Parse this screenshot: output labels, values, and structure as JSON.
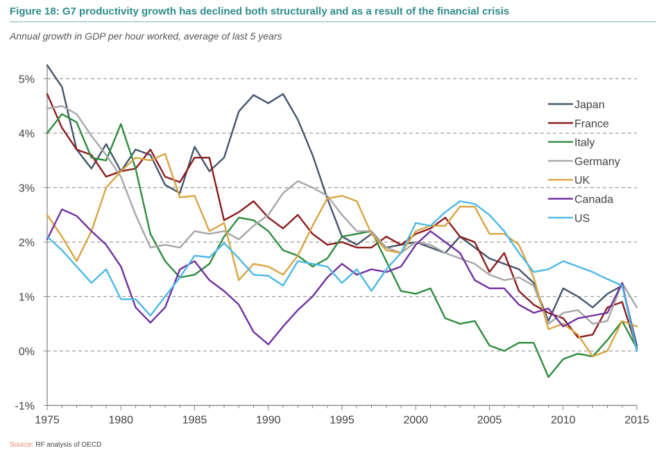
{
  "header": {
    "title": "Figure 18: G7 productivity growth has declined both structurally and as a result of the financial crisis",
    "subtitle": "Annual growth in GDP per hour worked, average of last 5 years"
  },
  "footer": {
    "source_label": "Source:",
    "source_text": "RF analysis of OECD"
  },
  "chart_data": {
    "type": "line",
    "title": "Figure 18: G7 productivity growth has declined both structurally and as a result of the financial crisis",
    "subtitle": "Annual growth in GDP per hour worked, average of last 5 years",
    "xlabel": "",
    "ylabel": "",
    "xlim": [
      1975,
      2015
    ],
    "ylim": [
      -1,
      5.5
    ],
    "x_ticks": [
      "1975",
      "1980",
      "1985",
      "1990",
      "1995",
      "2000",
      "2005",
      "2010",
      "2015"
    ],
    "y_ticks": [
      {
        "value": -1,
        "label": "-1%"
      },
      {
        "value": 0,
        "label": "0%"
      },
      {
        "value": 1,
        "label": "1%"
      },
      {
        "value": 2,
        "label": "2%"
      },
      {
        "value": 3,
        "label": "3%"
      },
      {
        "value": 4,
        "label": "4%"
      },
      {
        "value": 5,
        "label": "5%"
      }
    ],
    "grid": "horizontal dashed",
    "legend_position": "top-right",
    "x": [
      1975,
      1976,
      1977,
      1978,
      1979,
      1980,
      1981,
      1982,
      1983,
      1984,
      1985,
      1986,
      1987,
      1988,
      1989,
      1990,
      1991,
      1992,
      1993,
      1994,
      1995,
      1996,
      1997,
      1998,
      1999,
      2000,
      2001,
      2002,
      2003,
      2004,
      2005,
      2006,
      2007,
      2008,
      2009,
      2010,
      2011,
      2012,
      2013,
      2014,
      2015
    ],
    "series": [
      {
        "name": "Japan",
        "color": "#44546a",
        "values": [
          5.25,
          4.85,
          3.7,
          3.35,
          3.8,
          3.3,
          3.7,
          3.6,
          3.05,
          2.9,
          3.75,
          3.3,
          3.55,
          4.4,
          4.7,
          4.55,
          4.72,
          4.25,
          3.6,
          2.8,
          2.1,
          1.95,
          2.15,
          1.9,
          1.95,
          2.0,
          1.9,
          1.8,
          2.1,
          1.9,
          1.7,
          1.6,
          1.5,
          1.25,
          0.55,
          1.15,
          1.0,
          0.8,
          1.05,
          1.2,
          0.1
        ]
      },
      {
        "name": "France",
        "color": "#8b1a1a",
        "values": [
          4.72,
          4.1,
          3.7,
          3.6,
          3.2,
          3.3,
          3.35,
          3.7,
          3.2,
          3.1,
          3.55,
          3.55,
          2.4,
          2.55,
          2.75,
          2.45,
          2.25,
          2.5,
          2.15,
          1.95,
          2.0,
          1.9,
          1.9,
          2.1,
          1.95,
          2.15,
          2.25,
          2.45,
          2.1,
          2.0,
          1.45,
          1.8,
          1.1,
          0.85,
          0.7,
          0.6,
          0.25,
          0.3,
          0.8,
          0.9,
          0.05
        ]
      },
      {
        "name": "Italy",
        "color": "#2e8b3e",
        "values": [
          4.0,
          4.35,
          4.2,
          3.55,
          3.5,
          4.17,
          3.35,
          2.15,
          1.65,
          1.35,
          1.4,
          1.6,
          2.1,
          2.45,
          2.4,
          2.2,
          1.85,
          1.75,
          1.55,
          1.7,
          2.1,
          2.15,
          2.2,
          1.65,
          1.1,
          1.05,
          1.15,
          0.6,
          0.5,
          0.55,
          0.1,
          0.0,
          0.15,
          0.15,
          -0.48,
          -0.15,
          -0.05,
          -0.1,
          0.2,
          0.55,
          0.05
        ]
      },
      {
        "name": "Germany",
        "color": "#a6a6a6",
        "values": [
          4.45,
          4.5,
          4.35,
          3.95,
          3.6,
          3.2,
          2.5,
          1.9,
          1.95,
          1.9,
          2.2,
          2.15,
          2.2,
          2.05,
          2.3,
          2.5,
          2.9,
          3.12,
          3.0,
          2.85,
          2.5,
          2.2,
          2.2,
          1.9,
          1.8,
          2.0,
          1.95,
          1.8,
          1.7,
          1.6,
          1.4,
          1.3,
          1.35,
          1.2,
          0.5,
          0.7,
          0.75,
          0.5,
          0.55,
          1.25,
          0.8
        ]
      },
      {
        "name": "UK",
        "color": "#d9a441",
        "values": [
          2.5,
          2.1,
          1.65,
          2.2,
          3.0,
          3.3,
          3.55,
          3.5,
          3.62,
          2.82,
          2.85,
          2.2,
          2.35,
          1.3,
          1.6,
          1.55,
          1.4,
          1.75,
          2.3,
          2.8,
          2.85,
          2.75,
          2.15,
          1.85,
          1.8,
          2.2,
          2.3,
          2.3,
          2.65,
          2.65,
          2.15,
          2.15,
          1.95,
          1.35,
          0.4,
          0.5,
          0.3,
          -0.1,
          0.0,
          0.55,
          0.45
        ]
      },
      {
        "name": "Canada",
        "color": "#7030a0",
        "values": [
          2.05,
          2.6,
          2.48,
          2.2,
          1.95,
          1.55,
          0.8,
          0.52,
          0.8,
          1.5,
          1.65,
          1.3,
          1.1,
          0.85,
          0.35,
          0.12,
          0.45,
          0.75,
          1.0,
          1.35,
          1.6,
          1.4,
          1.5,
          1.45,
          1.55,
          1.95,
          2.2,
          2.0,
          1.8,
          1.3,
          1.15,
          1.15,
          0.85,
          0.7,
          0.78,
          0.45,
          0.6,
          0.65,
          0.7,
          1.25,
          0.0
        ]
      },
      {
        "name": "US",
        "color": "#4bb8e6",
        "values": [
          2.1,
          1.85,
          1.55,
          1.25,
          1.5,
          0.95,
          0.95,
          0.65,
          1.0,
          1.35,
          1.75,
          1.72,
          1.98,
          1.7,
          1.4,
          1.38,
          1.2,
          1.65,
          1.6,
          1.55,
          1.25,
          1.5,
          1.1,
          1.5,
          1.8,
          2.35,
          2.3,
          2.55,
          2.75,
          2.7,
          2.5,
          2.2,
          1.8,
          1.45,
          1.5,
          1.65,
          1.55,
          1.45,
          1.32,
          1.2,
          0.0
        ]
      }
    ]
  }
}
